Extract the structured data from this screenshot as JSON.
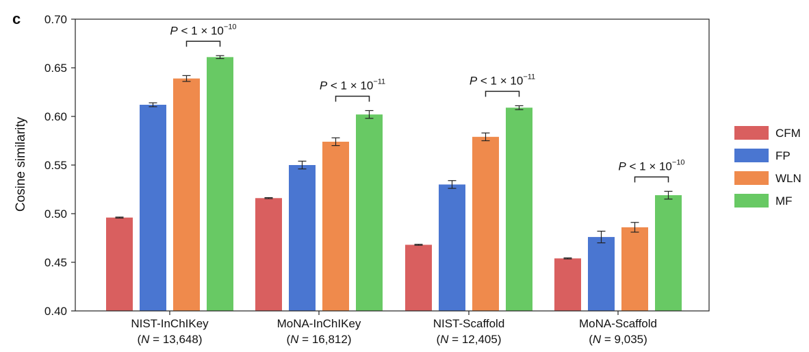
{
  "panel_label": "c",
  "chart_data": {
    "type": "bar",
    "ylabel": "Cosine similarity",
    "ylim": [
      0.4,
      0.7
    ],
    "yticks": [
      "0.40",
      "0.45",
      "0.50",
      "0.55",
      "0.60",
      "0.65",
      "0.70"
    ],
    "ytick_values": [
      0.4,
      0.45,
      0.5,
      0.55,
      0.6,
      0.65,
      0.7
    ],
    "categories": [
      {
        "name": "NIST-InChIKey",
        "n_prefix": "(",
        "n_var": "N",
        "n_text": " = 13,648)"
      },
      {
        "name": "MoNA-InChIKey",
        "n_prefix": "(",
        "n_var": "N",
        "n_text": " = 16,812)"
      },
      {
        "name": "NIST-Scaffold",
        "n_prefix": "(",
        "n_var": "N",
        "n_text": " = 12,405)"
      },
      {
        "name": "MoNA-Scaffold",
        "n_prefix": "(",
        "n_var": "N",
        "n_text": " = 9,035)"
      }
    ],
    "series": [
      {
        "name": "CFM",
        "color": "#d95f5f",
        "values": [
          0.496,
          0.516,
          0.468,
          0.454
        ],
        "errors": [
          0.0005,
          0.0005,
          0.0005,
          0.0005
        ]
      },
      {
        "name": "FP",
        "color": "#4a76d1",
        "values": [
          0.612,
          0.55,
          0.53,
          0.476
        ],
        "errors": [
          0.002,
          0.004,
          0.004,
          0.006
        ]
      },
      {
        "name": "WLN",
        "color": "#ef8a4c",
        "values": [
          0.639,
          0.574,
          0.579,
          0.486
        ],
        "errors": [
          0.003,
          0.004,
          0.004,
          0.005
        ]
      },
      {
        "name": "MF",
        "color": "#68c964",
        "values": [
          0.661,
          0.602,
          0.609,
          0.519
        ],
        "errors": [
          0.0015,
          0.004,
          0.002,
          0.004
        ]
      }
    ],
    "legend_position": "right",
    "grid": false,
    "annotations": [
      {
        "category_index": 0,
        "text_prefix": "P",
        "text_mid": " < 1 × 10",
        "exponent": "−10"
      },
      {
        "category_index": 1,
        "text_prefix": "P",
        "text_mid": " < 1 × 10",
        "exponent": "−11"
      },
      {
        "category_index": 2,
        "text_prefix": "P",
        "text_mid": " < 1 × 10",
        "exponent": "−11"
      },
      {
        "category_index": 3,
        "text_prefix": "P",
        "text_mid": " < 1 × 10",
        "exponent": "−10"
      }
    ]
  }
}
